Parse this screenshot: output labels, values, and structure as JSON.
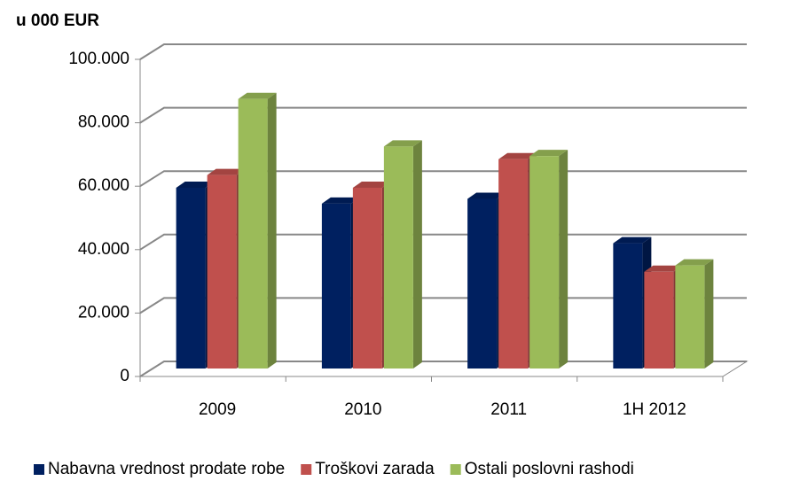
{
  "chart_data": {
    "type": "bar3d",
    "title": "u 000 EUR",
    "categories": [
      "2009",
      "2010",
      "2011",
      "1H 2012"
    ],
    "series": [
      {
        "name": "Nabavna vrednost prodate robe",
        "color": "#002060",
        "values": [
          57000,
          52000,
          53500,
          39500
        ]
      },
      {
        "name": "Troškovi zarada",
        "color": "#c0504d",
        "values": [
          61000,
          57000,
          66000,
          30500
        ]
      },
      {
        "name": "Ostali poslovni rashodi",
        "color": "#9bbb59",
        "values": [
          85000,
          70000,
          67000,
          32500
        ]
      }
    ],
    "ylim": [
      0,
      100000
    ],
    "yticks": [
      0,
      {
        "value": 20000,
        "label": "20.000"
      },
      {
        "value": 40000,
        "label": "40.000"
      },
      {
        "value": 60000,
        "label": "60.000"
      },
      {
        "value": 80000,
        "label": "80.000"
      },
      {
        "value": 100000,
        "label": "100.000"
      }
    ],
    "grid": true,
    "legend": "bottom"
  }
}
